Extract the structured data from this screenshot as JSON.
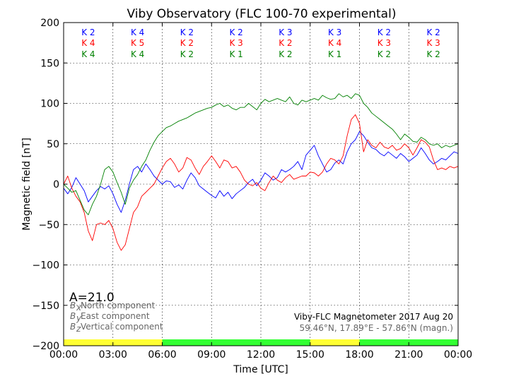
{
  "chart_data": {
    "type": "line",
    "title": "Viby Observatory (FLC 100-70 experimental)",
    "xlabel": "Time [UTC]",
    "ylabel": "Magnetic field [nT]",
    "xlim": [
      0,
      24
    ],
    "ylim": [
      -200,
      200
    ],
    "x_ticks": [
      "00:00",
      "03:00",
      "06:00",
      "09:00",
      "12:00",
      "15:00",
      "18:00",
      "21:00",
      "00:00"
    ],
    "y_ticks": [
      "200",
      "150",
      "100",
      "50",
      "0",
      "−50",
      "−100",
      "−150",
      "−200"
    ],
    "grid": true,
    "colors": {
      "north": "#0000ff",
      "east": "#ff0000",
      "vertical": "#008000",
      "yellow": "#ffff33",
      "green": "#33ff33"
    },
    "series": [
      {
        "key": "north",
        "sym": "B",
        "sub": "x",
        "name": " North component",
        "color": "#0000ff",
        "x": [
          0,
          0.25,
          0.5,
          0.75,
          1,
          1.25,
          1.5,
          1.75,
          2,
          2.25,
          2.5,
          2.75,
          3,
          3.25,
          3.5,
          3.75,
          4,
          4.25,
          4.5,
          4.75,
          5,
          5.25,
          5.5,
          5.75,
          6,
          6.25,
          6.5,
          6.75,
          7,
          7.25,
          7.5,
          7.75,
          8,
          8.25,
          8.5,
          8.75,
          9,
          9.25,
          9.5,
          9.75,
          10,
          10.25,
          10.5,
          10.75,
          11,
          11.25,
          11.5,
          11.75,
          12,
          12.25,
          12.5,
          12.75,
          13,
          13.25,
          13.5,
          13.75,
          14,
          14.25,
          14.5,
          14.75,
          15,
          15.25,
          15.5,
          15.75,
          16,
          16.25,
          16.5,
          16.75,
          17,
          17.25,
          17.5,
          17.75,
          18,
          18.25,
          18.5,
          18.75,
          19,
          19.25,
          19.5,
          19.75,
          20,
          20.25,
          20.5,
          20.75,
          21,
          21.25,
          21.5,
          21.75,
          22,
          22.25,
          22.5,
          22.75,
          23,
          23.25,
          23.5,
          23.75,
          24
        ],
        "values": [
          -5,
          -12,
          -4,
          8,
          0,
          -8,
          -22,
          -15,
          -8,
          -3,
          -6,
          -2,
          -12,
          -25,
          -35,
          -20,
          0,
          18,
          22,
          15,
          25,
          18,
          10,
          5,
          0,
          4,
          3,
          -4,
          -1,
          -6,
          5,
          14,
          8,
          -2,
          -6,
          -10,
          -14,
          -17,
          -8,
          -15,
          -10,
          -18,
          -12,
          -8,
          -4,
          2,
          6,
          -2,
          5,
          14,
          10,
          5,
          8,
          18,
          15,
          18,
          22,
          28,
          18,
          36,
          42,
          48,
          35,
          25,
          15,
          18,
          26,
          30,
          25,
          40,
          50,
          55,
          65,
          60,
          52,
          45,
          43,
          38,
          35,
          40,
          36,
          32,
          38,
          34,
          28,
          32,
          36,
          45,
          38,
          30,
          25,
          28,
          32,
          30,
          35,
          40,
          38
        ]
      },
      {
        "key": "east",
        "sym": "B",
        "sub": "y",
        "name": " East component",
        "color": "#ff0000",
        "x": [
          0,
          0.25,
          0.5,
          0.75,
          1,
          1.25,
          1.5,
          1.75,
          2,
          2.25,
          2.5,
          2.75,
          3,
          3.25,
          3.5,
          3.75,
          4,
          4.25,
          4.5,
          4.75,
          5,
          5.25,
          5.5,
          5.75,
          6,
          6.25,
          6.5,
          6.75,
          7,
          7.25,
          7.5,
          7.75,
          8,
          8.25,
          8.5,
          8.75,
          9,
          9.25,
          9.5,
          9.75,
          10,
          10.25,
          10.5,
          10.75,
          11,
          11.25,
          11.5,
          11.75,
          12,
          12.25,
          12.5,
          12.75,
          13,
          13.25,
          13.5,
          13.75,
          14,
          14.25,
          14.5,
          14.75,
          15,
          15.25,
          15.5,
          15.75,
          16,
          16.25,
          16.5,
          16.75,
          17,
          17.25,
          17.5,
          17.75,
          18,
          18.25,
          18.5,
          18.75,
          19,
          19.25,
          19.5,
          19.75,
          20,
          20.25,
          20.5,
          20.75,
          21,
          21.25,
          21.5,
          21.75,
          22,
          22.25,
          22.5,
          22.75,
          23,
          23.25,
          23.5,
          23.75,
          24
        ],
        "values": [
          0,
          10,
          -5,
          -15,
          -22,
          -35,
          -58,
          -70,
          -50,
          -48,
          -50,
          -45,
          -55,
          -72,
          -82,
          -75,
          -55,
          -35,
          -28,
          -15,
          -10,
          -5,
          0,
          10,
          20,
          28,
          32,
          25,
          15,
          20,
          33,
          30,
          20,
          12,
          22,
          28,
          35,
          28,
          20,
          30,
          28,
          20,
          22,
          15,
          5,
          0,
          -2,
          2,
          -5,
          -8,
          2,
          10,
          5,
          2,
          8,
          12,
          6,
          8,
          10,
          10,
          15,
          14,
          10,
          15,
          25,
          32,
          30,
          25,
          35,
          60,
          80,
          86,
          75,
          40,
          55,
          48,
          45,
          52,
          46,
          44,
          48,
          42,
          44,
          50,
          45,
          36,
          45,
          55,
          52,
          46,
          30,
          18,
          20,
          18,
          22,
          20,
          22
        ]
      },
      {
        "key": "vertical",
        "sym": "B",
        "sub": "z",
        "name": " Vertical component",
        "color": "#008000",
        "x": [
          0,
          0.25,
          0.5,
          0.75,
          1,
          1.25,
          1.5,
          1.75,
          2,
          2.25,
          2.5,
          2.75,
          3,
          3.25,
          3.5,
          3.75,
          4,
          4.25,
          4.5,
          4.75,
          5,
          5.25,
          5.5,
          5.75,
          6,
          6.25,
          6.5,
          6.75,
          7,
          7.25,
          7.5,
          7.75,
          8,
          8.25,
          8.5,
          8.75,
          9,
          9.25,
          9.5,
          9.75,
          10,
          10.25,
          10.5,
          10.75,
          11,
          11.25,
          11.5,
          11.75,
          12,
          12.25,
          12.5,
          12.75,
          13,
          13.25,
          13.5,
          13.75,
          14,
          14.25,
          14.5,
          14.75,
          15,
          15.25,
          15.5,
          15.75,
          16,
          16.25,
          16.5,
          16.75,
          17,
          17.25,
          17.5,
          17.75,
          18,
          18.25,
          18.5,
          18.75,
          19,
          19.25,
          19.5,
          19.75,
          20,
          20.25,
          20.5,
          20.75,
          21,
          21.25,
          21.5,
          21.75,
          22,
          22.25,
          22.5,
          22.75,
          23,
          23.25,
          23.5,
          23.75,
          24
        ],
        "values": [
          0,
          -5,
          -10,
          -8,
          -20,
          -32,
          -38,
          -25,
          -15,
          0,
          18,
          22,
          15,
          2,
          -10,
          -25,
          -5,
          5,
          12,
          22,
          30,
          42,
          52,
          60,
          65,
          70,
          72,
          75,
          78,
          80,
          82,
          85,
          88,
          90,
          92,
          94,
          95,
          98,
          100,
          96,
          98,
          94,
          92,
          95,
          95,
          100,
          96,
          92,
          100,
          105,
          102,
          104,
          106,
          104,
          102,
          108,
          100,
          98,
          104,
          102,
          104,
          106,
          104,
          110,
          107,
          105,
          106,
          112,
          108,
          110,
          106,
          112,
          110,
          100,
          95,
          88,
          84,
          80,
          76,
          72,
          68,
          62,
          55,
          62,
          58,
          53,
          52,
          58,
          55,
          50,
          48,
          50,
          45,
          48,
          46,
          48,
          50
        ]
      }
    ],
    "bands": [
      {
        "from": 0,
        "to": 6,
        "color": "#ffff33"
      },
      {
        "from": 6,
        "to": 15,
        "color": "#33ff33"
      },
      {
        "from": 15,
        "to": 18,
        "color": "#ffff33"
      },
      {
        "from": 18,
        "to": 24,
        "color": "#33ff33"
      }
    ],
    "k_indices": {
      "north": [
        "K 2",
        "K 4",
        "K 2",
        "K 2",
        "K 3",
        "K 3",
        "K 2",
        "K 2"
      ],
      "east": [
        "K 4",
        "K 5",
        "K 2",
        "K 3",
        "K 2",
        "K 4",
        "K 3",
        "K 3"
      ],
      "vertical": [
        "K 4",
        "K 4",
        "K 2",
        "K 1",
        "K 2",
        "K 1",
        "K 2",
        "K 2"
      ]
    },
    "a_index": "A=21.0",
    "info": {
      "line1": "Viby-FLC Magnetometer 2017 Aug 20",
      "line2": "59.46°N, 17.89°E - 57.86°N (magn.)"
    }
  }
}
